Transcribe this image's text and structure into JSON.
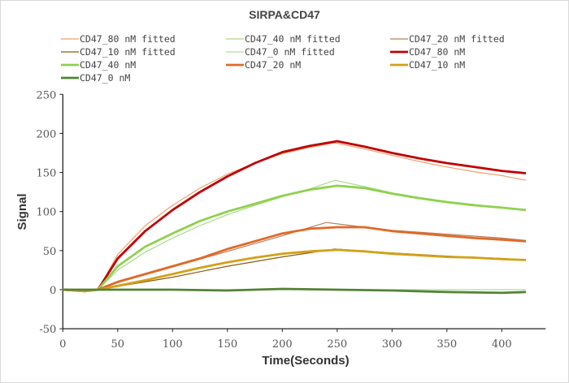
{
  "chart_data": {
    "type": "line",
    "title": "SIRPA&CD47",
    "xlabel": "Time(Seconds)",
    "ylabel": "Signal",
    "xlim": [
      0,
      440
    ],
    "ylim": [
      -50,
      250
    ],
    "xticks": [
      0,
      50,
      100,
      150,
      200,
      250,
      300,
      350,
      400
    ],
    "yticks": [
      -50,
      0,
      50,
      100,
      150,
      200,
      250
    ],
    "grid": false,
    "legend_position": "top",
    "series": [
      {
        "name": "CD47_80 nM fitted",
        "color": "#f0a070",
        "width": 1.2,
        "x": [
          0,
          32,
          50,
          75,
          100,
          125,
          150,
          175,
          200,
          225,
          248,
          275,
          300,
          325,
          350,
          375,
          400,
          422
        ],
        "y": [
          0,
          0,
          45,
          82,
          108,
          130,
          148,
          162,
          174,
          182,
          188,
          180,
          172,
          164,
          157,
          151,
          146,
          140
        ]
      },
      {
        "name": "CD47_40 nM fitted",
        "color": "#a9d98a",
        "width": 1.2,
        "x": [
          0,
          32,
          50,
          75,
          100,
          125,
          150,
          175,
          200,
          225,
          248,
          275,
          300,
          325,
          350,
          375,
          400,
          422
        ],
        "y": [
          0,
          0,
          25,
          48,
          66,
          82,
          96,
          108,
          119,
          129,
          140,
          132,
          124,
          118,
          113,
          109,
          105,
          102
        ]
      },
      {
        "name": "CD47_20 nM fitted",
        "color": "#b8805c",
        "width": 1.2,
        "x": [
          0,
          32,
          50,
          100,
          150,
          200,
          240,
          275,
          300,
          350,
          400,
          422
        ],
        "y": [
          0,
          0,
          9,
          29,
          49,
          69,
          86,
          80,
          76,
          71,
          66,
          63
        ]
      },
      {
        "name": "CD47_10 nM fitted",
        "color": "#8b5a14",
        "width": 1.2,
        "x": [
          0,
          32,
          100,
          150,
          200,
          248,
          300,
          350,
          400,
          422
        ],
        "y": [
          0,
          0,
          16,
          30,
          42,
          52,
          47,
          43,
          40,
          38
        ]
      },
      {
        "name": "CD47_0 nM fitted",
        "color": "#a8e090",
        "width": 1.2,
        "x": [
          0,
          422
        ],
        "y": [
          0,
          0
        ]
      },
      {
        "name": "CD47_80 nM",
        "color": "#c00000",
        "width": 2.8,
        "x": [
          0,
          20,
          32,
          50,
          75,
          100,
          125,
          150,
          175,
          200,
          225,
          250,
          275,
          300,
          325,
          350,
          375,
          400,
          422
        ],
        "y": [
          0,
          -1,
          0,
          40,
          75,
          102,
          125,
          145,
          162,
          176,
          184,
          190,
          183,
          175,
          168,
          162,
          157,
          152,
          149
        ]
      },
      {
        "name": "CD47_40 nM",
        "color": "#8fd14f",
        "width": 2.8,
        "x": [
          0,
          20,
          32,
          50,
          75,
          100,
          125,
          150,
          175,
          200,
          225,
          250,
          275,
          300,
          325,
          350,
          375,
          400,
          422
        ],
        "y": [
          0,
          -1,
          0,
          30,
          55,
          72,
          88,
          100,
          110,
          120,
          128,
          133,
          130,
          123,
          117,
          112,
          108,
          105,
          102
        ]
      },
      {
        "name": "CD47_20 nM",
        "color": "#e06a28",
        "width": 2.8,
        "x": [
          0,
          20,
          32,
          50,
          75,
          100,
          125,
          150,
          175,
          200,
          225,
          250,
          275,
          300,
          325,
          350,
          375,
          400,
          422
        ],
        "y": [
          0,
          -2,
          0,
          10,
          20,
          30,
          40,
          52,
          62,
          72,
          78,
          80,
          80,
          75,
          72,
          69,
          66,
          64,
          62
        ]
      },
      {
        "name": "CD47_10 nM",
        "color": "#d4a017",
        "width": 2.8,
        "x": [
          0,
          20,
          32,
          50,
          75,
          100,
          125,
          150,
          175,
          200,
          225,
          250,
          275,
          300,
          325,
          350,
          375,
          400,
          422
        ],
        "y": [
          0,
          -2,
          0,
          5,
          12,
          20,
          28,
          35,
          41,
          46,
          49,
          51,
          49,
          46,
          44,
          42,
          41,
          39,
          38
        ]
      },
      {
        "name": "CD47_0 nM",
        "color": "#548235",
        "width": 2.8,
        "x": [
          0,
          50,
          100,
          150,
          200,
          250,
          300,
          350,
          400,
          422
        ],
        "y": [
          0,
          0,
          0,
          -1,
          1,
          0,
          -1,
          -3,
          -4,
          -3
        ]
      }
    ]
  }
}
